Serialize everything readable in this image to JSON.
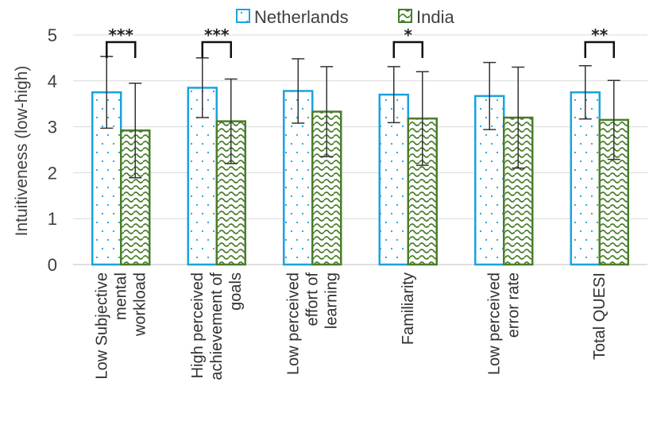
{
  "chart_data": {
    "type": "bar",
    "ylabel": "Intuitiveness (low-high)",
    "ylim": [
      0,
      5
    ],
    "yticks": [
      "0",
      "1",
      "2",
      "3",
      "4",
      "5"
    ],
    "legend_position": "top",
    "grid": true,
    "categories": [
      [
        "Low Subjective",
        "mental",
        "workload"
      ],
      [
        "High perceived",
        "achievement of",
        "goals"
      ],
      [
        "Low perceived",
        "effort of",
        "learning"
      ],
      [
        "Familiarity"
      ],
      [
        "Low perceived",
        "error rate"
      ],
      [
        "Total QUESI"
      ]
    ],
    "series": [
      {
        "name": "Netherlands",
        "color": "#1aa3df",
        "pattern": "dots",
        "values": [
          3.75,
          3.85,
          3.78,
          3.7,
          3.67,
          3.75
        ],
        "error": [
          0.78,
          0.65,
          0.7,
          0.61,
          0.73,
          0.58
        ]
      },
      {
        "name": "India",
        "color": "#4a7d2b",
        "pattern": "waves",
        "values": [
          2.92,
          3.12,
          3.33,
          3.18,
          3.2,
          3.15
        ],
        "error": [
          1.03,
          0.92,
          0.98,
          1.02,
          1.1,
          0.86
        ]
      }
    ],
    "significance": [
      "***",
      "***",
      "",
      "*",
      "",
      "**"
    ]
  }
}
